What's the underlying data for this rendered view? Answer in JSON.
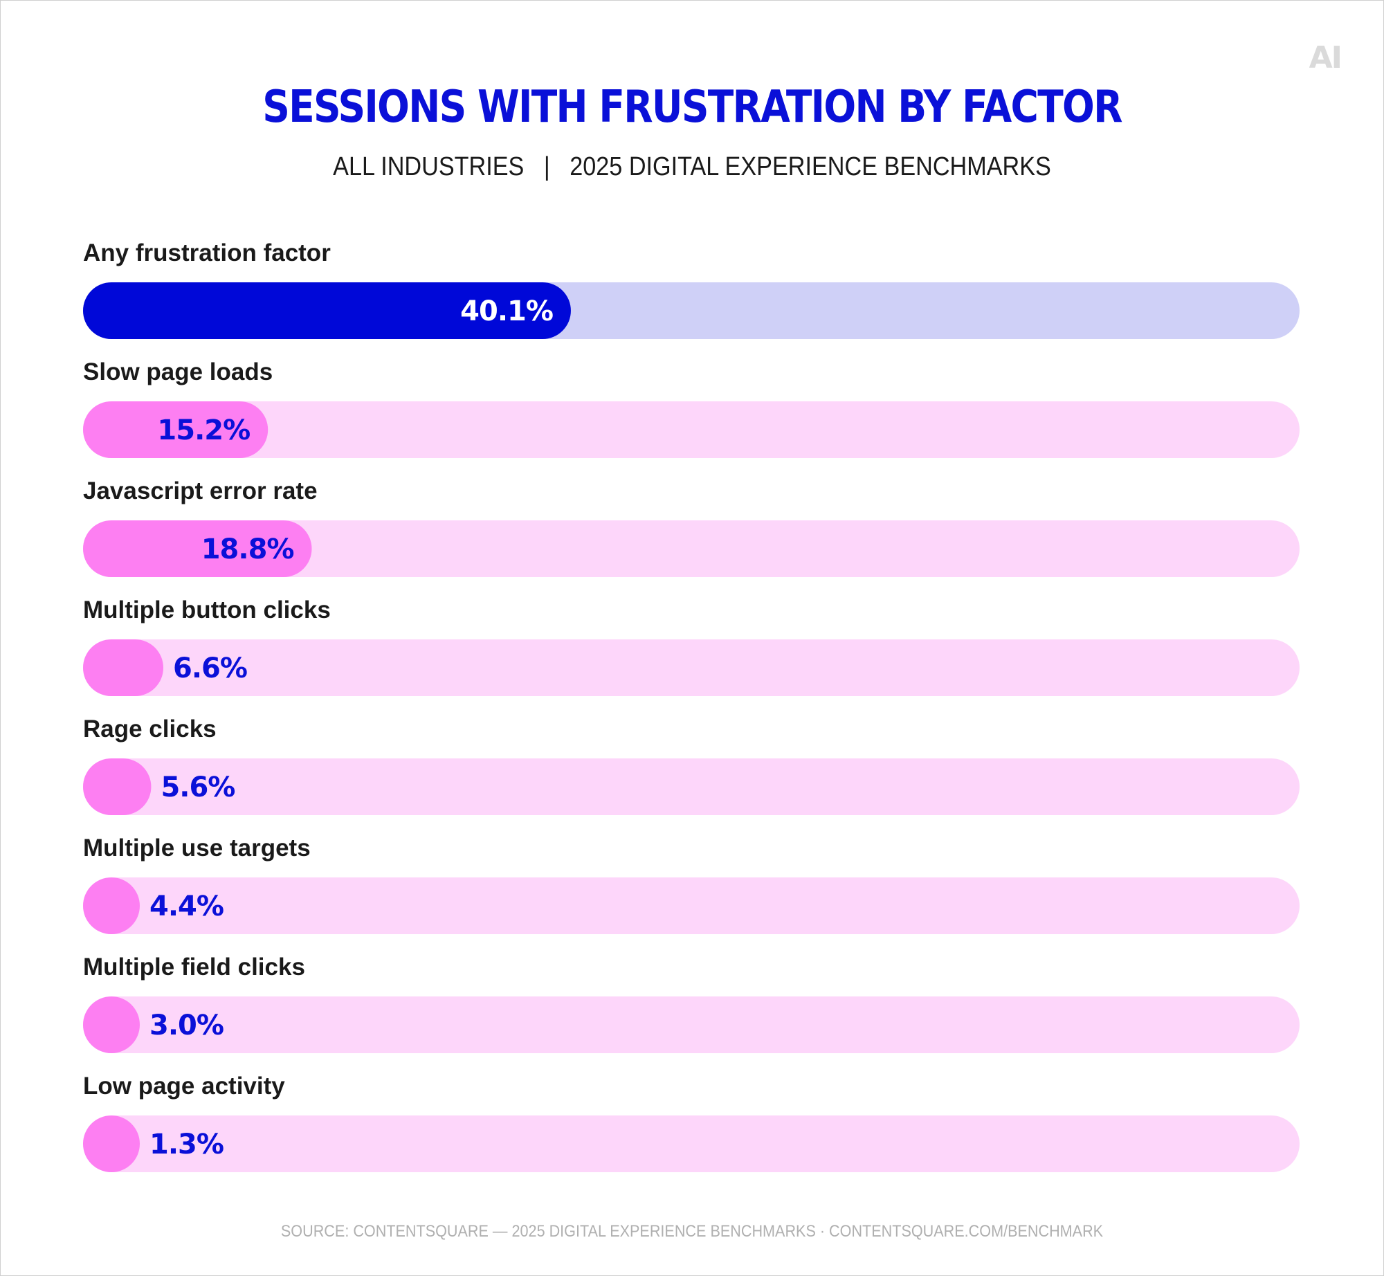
{
  "logo_text": "AI",
  "chart_data": {
    "type": "bar",
    "orientation": "horizontal",
    "title": "SESSIONS WITH FRUSTRATION BY FACTOR",
    "subtitle": "ALL INDUSTRIES   |   2025 DIGITAL EXPERIENCE BENCHMARKS",
    "xlim": [
      0,
      100
    ],
    "unit": "%",
    "grid": false,
    "legend": "none",
    "categories": [
      "Any frustration factor",
      "Slow page loads",
      "Javascript error rate",
      "Multiple button clicks",
      "Rage clicks",
      "Multiple use targets",
      "Multiple field clicks",
      "Low page activity"
    ],
    "values": [
      40.1,
      15.2,
      18.8,
      6.6,
      5.6,
      4.4,
      3.0,
      1.3
    ],
    "value_labels": [
      "40.1%",
      "15.2%",
      "18.8%",
      "6.6%",
      "5.6%",
      "4.4%",
      "3.0%",
      "1.3%"
    ],
    "highlight_index": 0
  },
  "colors": {
    "title": "#0a10d8",
    "highlight_fill": "#0008d8",
    "highlight_track": "#cfd0f7",
    "highlight_value_text": "#ffffff",
    "bar_fill": "#fd7ff2",
    "bar_track": "#fdd6fa",
    "bar_value_text": "#0a10d8"
  },
  "source": "SOURCE: CONTENTSQUARE — 2025 DIGITAL EXPERIENCE BENCHMARKS · CONTENTSQUARE.COM/BENCHMARK"
}
